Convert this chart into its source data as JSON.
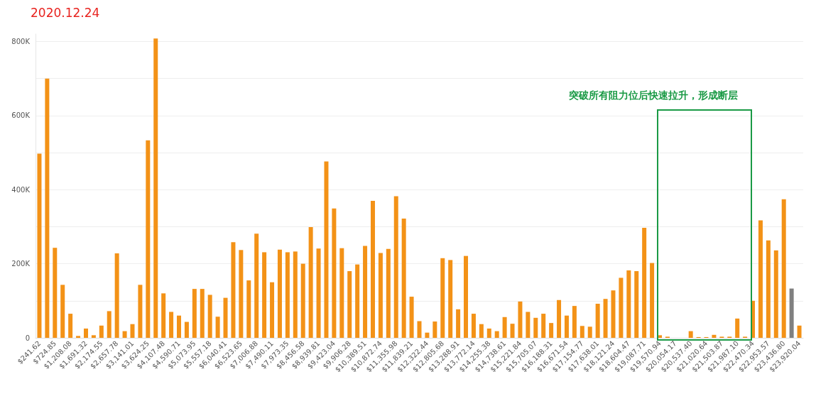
{
  "chart_data": {
    "type": "bar",
    "title": "2020.12.24",
    "categories": [
      "$241.62",
      null,
      "$724.85",
      null,
      "$1,208.08",
      null,
      "$1,691.32",
      null,
      "$2,174.55",
      null,
      "$2,657.78",
      null,
      "$3,141.01",
      null,
      "$3,624.25",
      null,
      "$4,107.48",
      null,
      "$4,590.71",
      null,
      "$5,073.95",
      null,
      "$5,557.18",
      null,
      "$6,040.41",
      null,
      "$6,523.65",
      null,
      "$7,006.88",
      null,
      "$7,490.11",
      null,
      "$7,973.35",
      null,
      "$8,456.58",
      null,
      "$8,939.81",
      null,
      "$9,423.04",
      null,
      "$9,906.28",
      null,
      "$10,389.51",
      null,
      "$10,872.74",
      null,
      "$11,355.98",
      null,
      "$11,839.21",
      null,
      "$12,322.44",
      null,
      "$12,805.68",
      null,
      "$13,288.91",
      null,
      "$13,772.14",
      null,
      "$14,255.38",
      null,
      "$14,738.61",
      null,
      "$15,221.84",
      null,
      "$15,705.07",
      null,
      "$16,188.31",
      null,
      "$16,671.54",
      null,
      "$17,154.77",
      null,
      "$17,638.01",
      null,
      "$18,121.24",
      null,
      "$18,604.47",
      null,
      "$19,087.71",
      null,
      "$19,570.94",
      null,
      "$20,054.17",
      null,
      "$20,537.40",
      null,
      "$21,020.64",
      null,
      "$21,503.87",
      null,
      "$21,987.10",
      null,
      "$22,470.34",
      null,
      "$22,953.57",
      null,
      "$23,436.80",
      null,
      "$23,920.04"
    ],
    "values": [
      497000,
      700000,
      243000,
      143000,
      65000,
      5000,
      25000,
      7000,
      33000,
      72000,
      228000,
      18000,
      37000,
      143000,
      533000,
      808000,
      120000,
      70000,
      60000,
      43000,
      132000,
      132000,
      116000,
      57000,
      108000,
      258000,
      237000,
      155000,
      281000,
      231000,
      150000,
      238000,
      231000,
      233000,
      200000,
      299000,
      241000,
      476000,
      349000,
      242000,
      180000,
      198000,
      248000,
      370000,
      229000,
      240000,
      382000,
      322000,
      111000,
      45000,
      14000,
      44000,
      215000,
      210000,
      77000,
      221000,
      65000,
      37000,
      25000,
      18000,
      56000,
      38000,
      98000,
      70000,
      54000,
      65000,
      40000,
      102000,
      60000,
      86000,
      32000,
      30000,
      92000,
      105000,
      128000,
      162000,
      182000,
      180000,
      297000,
      202000,
      7000,
      3000,
      0,
      0,
      18000,
      2000,
      2000,
      8000,
      3000,
      3000,
      52000,
      3000,
      100000,
      317000,
      263000,
      236000,
      374000,
      133000,
      33000
    ],
    "colors": [
      "#f39217",
      "#f39217",
      "#f39217",
      "#f39217",
      "#f39217",
      "#f39217",
      "#f39217",
      "#f39217",
      "#f39217",
      "#f39217",
      "#f39217",
      "#f39217",
      "#f39217",
      "#f39217",
      "#f39217",
      "#f39217",
      "#f39217",
      "#f39217",
      "#f39217",
      "#f39217",
      "#f39217",
      "#f39217",
      "#f39217",
      "#f39217",
      "#f39217",
      "#f39217",
      "#f39217",
      "#f39217",
      "#f39217",
      "#f39217",
      "#f39217",
      "#f39217",
      "#f39217",
      "#f39217",
      "#f39217",
      "#f39217",
      "#f39217",
      "#f39217",
      "#f39217",
      "#f39217",
      "#f39217",
      "#f39217",
      "#f39217",
      "#f39217",
      "#f39217",
      "#f39217",
      "#f39217",
      "#f39217",
      "#f39217",
      "#f39217",
      "#f39217",
      "#f39217",
      "#f39217",
      "#f39217",
      "#f39217",
      "#f39217",
      "#f39217",
      "#f39217",
      "#f39217",
      "#f39217",
      "#f39217",
      "#f39217",
      "#f39217",
      "#f39217",
      "#f39217",
      "#f39217",
      "#f39217",
      "#f39217",
      "#f39217",
      "#f39217",
      "#f39217",
      "#f39217",
      "#f39217",
      "#f39217",
      "#f39217",
      "#f39217",
      "#f39217",
      "#f39217",
      "#f39217",
      "#f39217",
      "#f39217",
      "#f39217",
      "#f39217",
      "#f39217",
      "#f39217",
      "#f39217",
      "#f39217",
      "#f39217",
      "#f39217",
      "#f39217",
      "#f39217",
      "#f39217",
      "#f39217",
      "#f39217",
      "#f39217",
      "#f39217",
      "#f39217",
      "#808080",
      "#f39217"
    ],
    "ylim": [
      0,
      820000
    ],
    "yticks": [
      0,
      {
        "value": 100000,
        "label": null
      },
      {
        "value": 200000,
        "label": "200K"
      },
      {
        "value": 300000,
        "label": null
      },
      {
        "value": 400000,
        "label": "400K"
      },
      {
        "value": 500000,
        "label": null
      },
      {
        "value": 600000,
        "label": "600K"
      },
      {
        "value": 700000,
        "label": null
      },
      {
        "value": 800000,
        "label": "800K"
      }
    ],
    "annotations": [
      "突破所有阻力位后快速拉升，形成断层"
    ],
    "grid": "y"
  }
}
